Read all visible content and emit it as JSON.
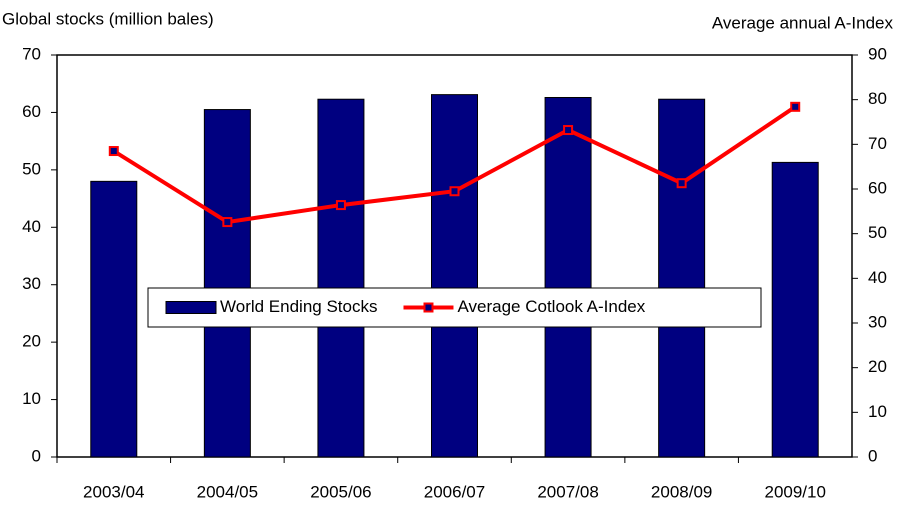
{
  "chart_data": {
    "type": "bar",
    "y_label": "Global stocks (million bales)",
    "y2_label": "Average annual A-Index",
    "categories": [
      "2003/04",
      "2004/05",
      "2005/06",
      "2006/07",
      "2007/08",
      "2008/09",
      "2009/10"
    ],
    "series": [
      {
        "name": "World Ending Stocks",
        "type": "bar",
        "color": "#000080",
        "values": [
          48.0,
          60.5,
          62.3,
          63.1,
          62.6,
          62.3,
          51.3
        ]
      },
      {
        "name": "Average Cotlook A-Index",
        "type": "line",
        "axis": "y2",
        "color": "#ff0000",
        "marker_color": "#000080",
        "values": [
          68.5,
          52.6,
          56.4,
          59.5,
          73.2,
          61.3,
          78.4
        ]
      }
    ],
    "ylim": [
      0,
      70
    ],
    "yticks": [
      0,
      10,
      20,
      30,
      40,
      50,
      60,
      70
    ],
    "y2lim": [
      0,
      90
    ],
    "y2ticks": [
      0,
      10,
      20,
      30,
      40,
      50,
      60,
      70,
      80,
      90
    ],
    "legend": "center"
  }
}
